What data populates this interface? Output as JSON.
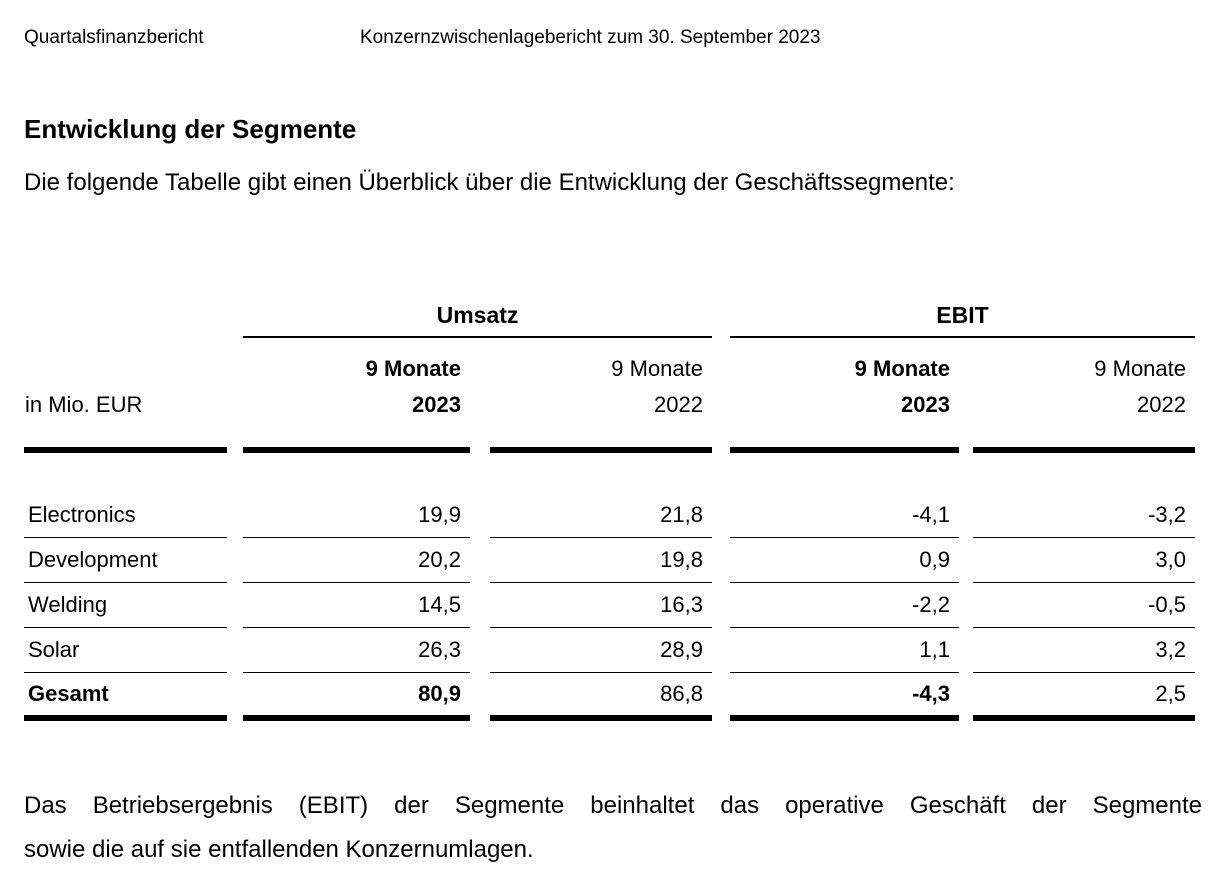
{
  "header": {
    "left": "Quartalsfinanzbericht",
    "center": "Konzernzwischenlagebericht zum 30. September 2023"
  },
  "section": {
    "title": "Entwicklung der Segmente",
    "intro": "Die folgende Tabelle gibt einen Überblick über die Entwicklung der Geschäftssegmente:"
  },
  "table": {
    "unit_label": "in Mio. EUR",
    "column_groups": {
      "umsatz": "Umsatz",
      "ebit": "EBIT"
    },
    "period_headers": {
      "current": {
        "line1": "9 Monate",
        "line2": "2023"
      },
      "prior": {
        "line1": "9 Monate",
        "line2": "2022"
      }
    },
    "rows": [
      {
        "label": "Electronics",
        "values": [
          "19,9",
          "21,8",
          "-4,1",
          "-3,2"
        ]
      },
      {
        "label": "Development",
        "values": [
          "20,2",
          "19,8",
          "0,9",
          "3,0"
        ]
      },
      {
        "label": "Welding",
        "values": [
          "14,5",
          "16,3",
          "-2,2",
          "-0,5"
        ]
      },
      {
        "label": "Solar",
        "values": [
          "26,3",
          "28,9",
          "1,1",
          "3,2"
        ]
      },
      {
        "label": "Gesamt",
        "values": [
          "80,9",
          "86,8",
          "-4,3",
          "2,5"
        ]
      }
    ]
  },
  "footnote": {
    "line1": "Das Betriebsergebnis (EBIT) der Segmente beinhaltet das operative Geschäft der Segmente",
    "line2": "sowie die auf sie entfallenden Konzernumlagen."
  }
}
